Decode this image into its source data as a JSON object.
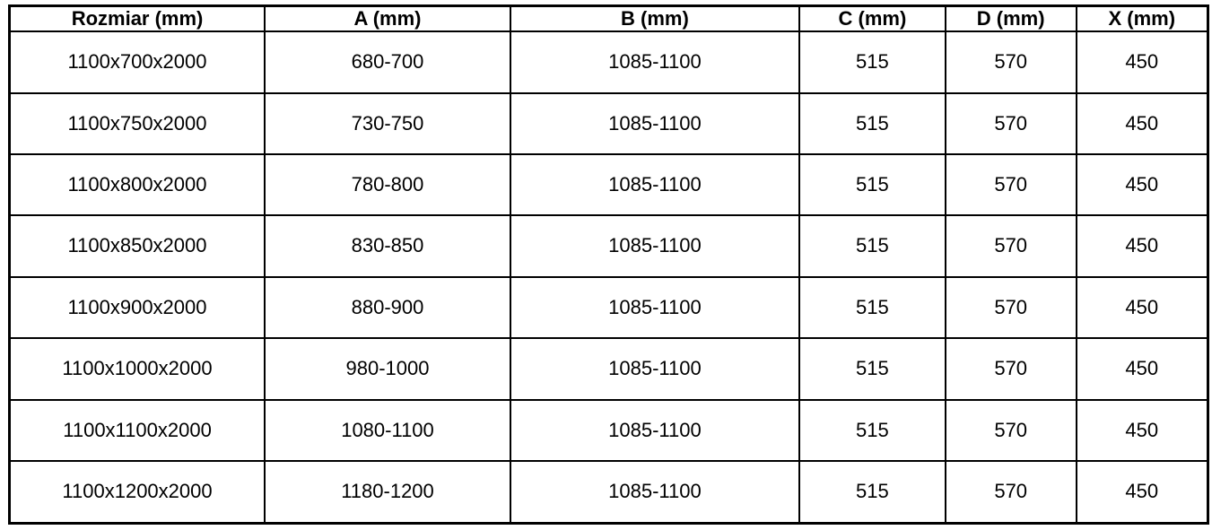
{
  "table": {
    "columns": [
      {
        "key": "rozmiar",
        "label": "Rozmiar (mm)"
      },
      {
        "key": "a",
        "label": "A (mm)"
      },
      {
        "key": "b",
        "label": "B (mm)"
      },
      {
        "key": "c",
        "label": "C (mm)"
      },
      {
        "key": "d",
        "label": "D (mm)"
      },
      {
        "key": "x",
        "label": "X (mm)"
      }
    ],
    "rows": [
      [
        "1100x700x2000",
        "680-700",
        "1085-1100",
        "515",
        "570",
        "450"
      ],
      [
        "1100x750x2000",
        "730-750",
        "1085-1100",
        "515",
        "570",
        "450"
      ],
      [
        "1100x800x2000",
        "780-800",
        "1085-1100",
        "515",
        "570",
        "450"
      ],
      [
        "1100x850x2000",
        "830-850",
        "1085-1100",
        "515",
        "570",
        "450"
      ],
      [
        "1100x900x2000",
        "880-900",
        "1085-1100",
        "515",
        "570",
        "450"
      ],
      [
        "1100x1000x2000",
        "980-1000",
        "1085-1100",
        "515",
        "570",
        "450"
      ],
      [
        "1100x1100x2000",
        "1080-1100",
        "1085-1100",
        "515",
        "570",
        "450"
      ],
      [
        "1100x1200x2000",
        "1180-1200",
        "1085-1100",
        "515",
        "570",
        "450"
      ]
    ]
  },
  "colors": {
    "border": "#000000",
    "text": "#000000",
    "background": "#ffffff"
  }
}
